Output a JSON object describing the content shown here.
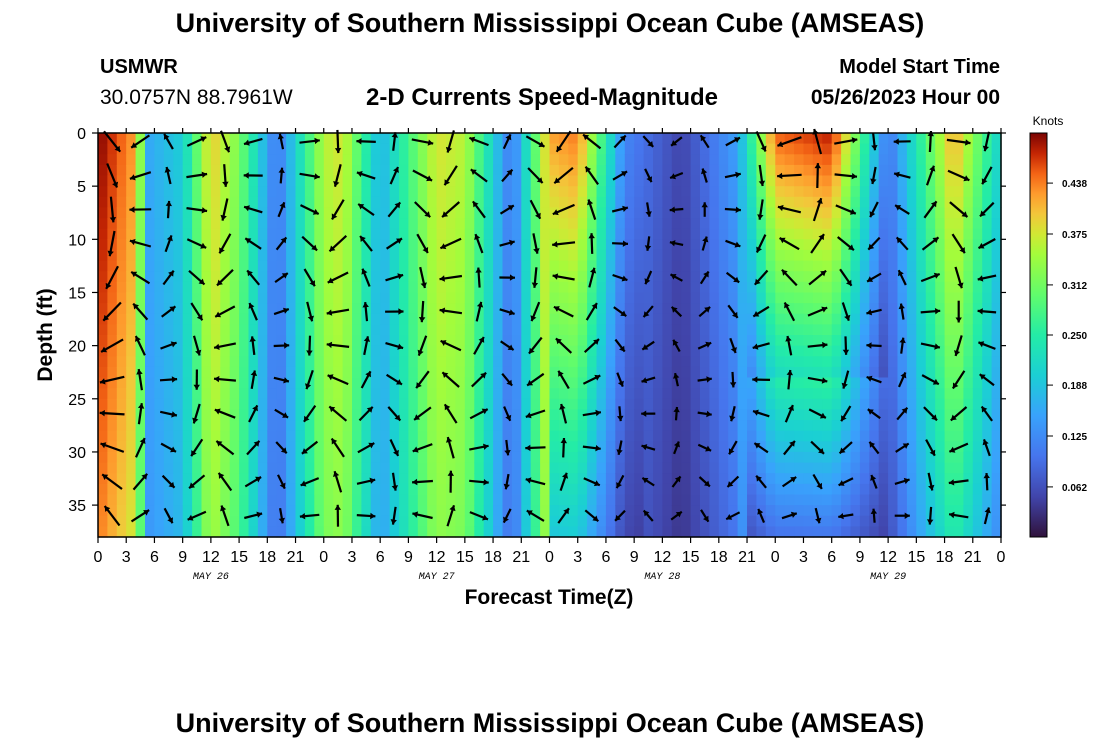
{
  "header": {
    "title": "University of Southern Mississippi Ocean Cube (AMSEAS)",
    "station": "USMWR",
    "coords": "30.0757N  88.7961W",
    "subtitle": "2-D Currents Speed-Magnitude",
    "model_label": "Model Start Time",
    "model_time": "05/26/2023 Hour 00"
  },
  "footer": {
    "title": "University of Southern Mississippi Ocean Cube (AMSEAS)"
  },
  "chart_data": {
    "type": "heatmap",
    "title": "2-D Currents Speed-Magnitude",
    "xlabel": "Forecast Time(Z)",
    "ylabel": "Depth (ft)",
    "x_range_hours": [
      0,
      96
    ],
    "y_range_ft": [
      0,
      38
    ],
    "y_ticks": [
      "0",
      "5",
      "10",
      "15",
      "20",
      "25",
      "30",
      "35"
    ],
    "x_ticks": [
      "0",
      "3",
      "6",
      "9",
      "12",
      "15",
      "18",
      "21",
      "0",
      "3",
      "6",
      "9",
      "12",
      "15",
      "18",
      "21",
      "0",
      "3",
      "6",
      "9",
      "12",
      "15",
      "18",
      "21",
      "0",
      "3",
      "6",
      "9",
      "12",
      "15",
      "18",
      "21",
      "0"
    ],
    "day_labels": [
      {
        "label": "MAY 26",
        "hour": 12
      },
      {
        "label": "MAY 27",
        "hour": 36
      },
      {
        "label": "MAY 28",
        "hour": 60
      },
      {
        "label": "MAY 29",
        "hour": 84
      }
    ],
    "colorbar": {
      "title": "Knots",
      "min": 0.0,
      "max": 0.5,
      "ticks": [
        "0.062",
        "0.125",
        "0.188",
        "0.250",
        "0.312",
        "0.375",
        "0.438"
      ]
    },
    "speed_profile_surface": [
      {
        "hour": 0,
        "knots": 0.5
      },
      {
        "hour": 4,
        "knots": 0.42
      },
      {
        "hour": 5.5,
        "knots": 0.16
      },
      {
        "hour": 9,
        "knots": 0.2
      },
      {
        "hour": 12,
        "knots": 0.4
      },
      {
        "hour": 15,
        "knots": 0.32
      },
      {
        "hour": 19,
        "knots": 0.1
      },
      {
        "hour": 24,
        "knots": 0.36
      },
      {
        "hour": 26,
        "knots": 0.38
      },
      {
        "hour": 30,
        "knots": 0.17
      },
      {
        "hour": 36,
        "knots": 0.38
      },
      {
        "hour": 39,
        "knots": 0.36
      },
      {
        "hour": 44,
        "knots": 0.1
      },
      {
        "hour": 48,
        "knots": 0.42
      },
      {
        "hour": 51,
        "knots": 0.44
      },
      {
        "hour": 56,
        "knots": 0.12
      },
      {
        "hour": 62,
        "knots": 0.05
      },
      {
        "hour": 68,
        "knots": 0.15
      },
      {
        "hour": 72,
        "knots": 0.45
      },
      {
        "hour": 78,
        "knots": 0.48
      },
      {
        "hour": 84,
        "knots": 0.1
      },
      {
        "hour": 91,
        "knots": 0.42
      },
      {
        "hour": 96,
        "knots": 0.2
      }
    ]
  }
}
